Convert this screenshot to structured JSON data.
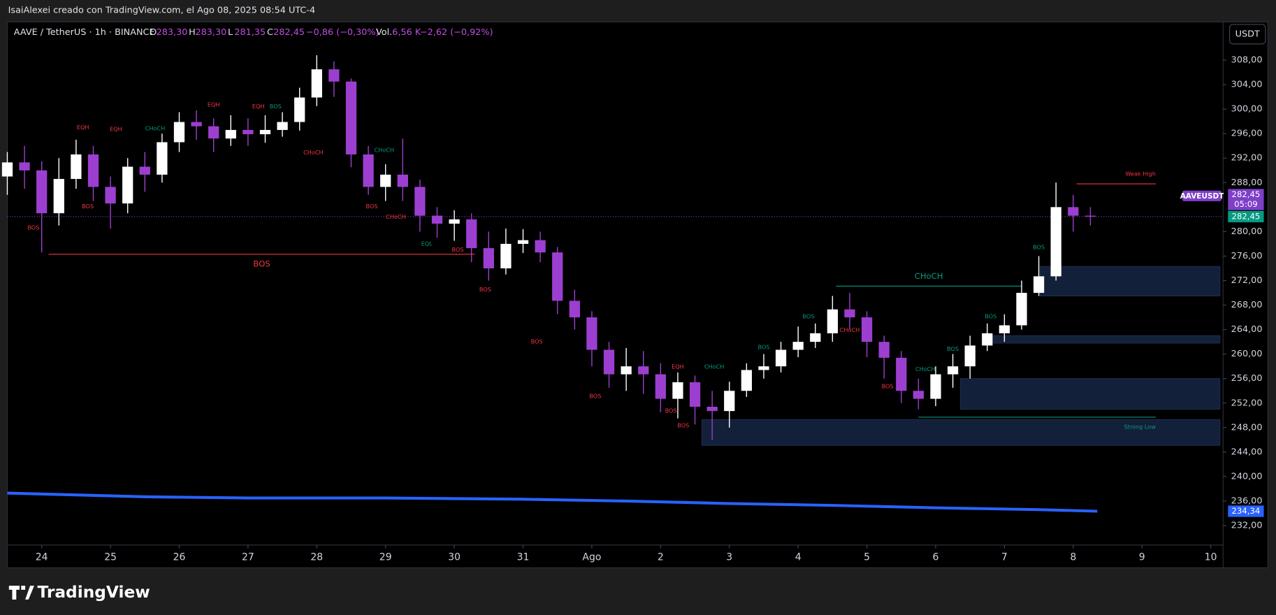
{
  "header": {
    "credit": "IsaiAlexei creado con TradingView.com, el Ago 08, 2025 08:54 UTC-4",
    "symbol": "AAVE / TetherUS · 1h · BINANCE",
    "ohlc": [
      {
        "key": "O",
        "value": "283,30"
      },
      {
        "key": "H",
        "value": "283,30"
      },
      {
        "key": "L",
        "value": "281,35"
      },
      {
        "key": "C",
        "value": "282,45"
      }
    ],
    "change": "−0,86 (−0,30%)",
    "vol_key": "Vol.",
    "vol": "6,56 K",
    "vol_change": "−2,62 (−0,92%)",
    "currency": "USDT"
  },
  "chart_data": {
    "type": "candlestick",
    "up_color": "#ffffff",
    "down_color": "#9c3fd0",
    "x": [
      -0.5,
      -0.25,
      0,
      0.25,
      0.5,
      0.75,
      1,
      1.25,
      1.5,
      1.75,
      2,
      2.25,
      2.5,
      2.75,
      3,
      3.25,
      3.5,
      3.75,
      4,
      4.25,
      4.5,
      4.75,
      5,
      5.25,
      5.5,
      5.75,
      6,
      6.25,
      6.5,
      6.75,
      7,
      7.25,
      7.5,
      7.75,
      8,
      8.25,
      8.5,
      8.75,
      9,
      9.25,
      9.5,
      9.75,
      10,
      10.25,
      10.5,
      10.75,
      11,
      11.25,
      11.5,
      11.75,
      12,
      12.25,
      12.5,
      12.75,
      13,
      13.25,
      13.5,
      13.75,
      14,
      14.25,
      14.5,
      14.75,
      15,
      15.25
    ],
    "open": [
      289,
      291.3,
      290,
      283,
      288.6,
      292.6,
      287.3,
      284.6,
      290.6,
      289.3,
      294.6,
      297.9,
      297.2,
      295.2,
      296.6,
      295.9,
      296.6,
      297.9,
      301.9,
      306.5,
      304.5,
      292.6,
      287.3,
      289.3,
      287.3,
      282.6,
      281.3,
      282,
      277.3,
      274,
      278,
      278.6,
      276.6,
      268.7,
      266,
      260.7,
      256.7,
      258,
      256.7,
      252.7,
      255.4,
      251.4,
      250.7,
      254,
      257.4,
      258,
      260.7,
      262,
      263.4,
      267.3,
      266,
      262,
      259.4,
      254,
      252.7,
      256.7,
      258,
      261.4,
      263.4,
      264.7,
      270,
      272.7,
      284,
      282.6
    ],
    "high": [
      293,
      294,
      291.5,
      292,
      295,
      294,
      289,
      292,
      293,
      296,
      299.5,
      299.8,
      298.5,
      299,
      298.5,
      299,
      299.5,
      303.5,
      308.8,
      307.8,
      305,
      294,
      291,
      295.2,
      288.5,
      284,
      283.5,
      283,
      280,
      280.5,
      280.4,
      280,
      277.5,
      270.5,
      267,
      262,
      261,
      260.5,
      258.5,
      257,
      256.5,
      254,
      255.5,
      258.5,
      260,
      262,
      264.5,
      265,
      269.5,
      270,
      267,
      263,
      260.5,
      256,
      258,
      260,
      263,
      265,
      266.5,
      272,
      276,
      288,
      286,
      284
    ],
    "low": [
      286,
      287,
      276.6,
      281,
      287,
      285,
      280.5,
      283,
      286.5,
      288,
      293,
      295,
      293,
      294,
      294,
      294.5,
      295.5,
      296.5,
      300.5,
      302,
      290.5,
      286,
      285,
      285,
      280,
      279,
      278.5,
      275,
      272,
      273,
      276.5,
      275,
      266.5,
      264,
      258,
      254.5,
      254,
      253.5,
      250.5,
      249.5,
      248.5,
      246,
      248,
      253,
      256,
      257,
      259.5,
      261,
      262,
      264,
      259.5,
      256,
      252,
      251,
      251.5,
      254.5,
      256,
      260.5,
      262,
      264,
      269.5,
      272,
      280,
      281
    ],
    "close": [
      291.3,
      290,
      283,
      288.6,
      292.6,
      287.3,
      284.6,
      290.6,
      289.3,
      294.6,
      297.9,
      297.2,
      295.2,
      296.6,
      295.9,
      296.6,
      297.9,
      301.9,
      306.5,
      304.5,
      292.6,
      287.3,
      289.3,
      287.3,
      282.6,
      281.3,
      282,
      277.3,
      274,
      278,
      278.6,
      276.6,
      268.7,
      266,
      260.7,
      256.7,
      258,
      256.7,
      252.7,
      255.4,
      251.4,
      250.7,
      254,
      257.4,
      258,
      260.7,
      262,
      263.4,
      267.3,
      266,
      262,
      259.4,
      254,
      252.7,
      256.7,
      258,
      261.4,
      263.4,
      264.7,
      270,
      272.7,
      284,
      282.6,
      282.45
    ],
    "xlim": [
      -0.5,
      17.18
    ],
    "ylim": [
      225.1,
      314.1
    ],
    "xticks": [
      {
        "value": 0,
        "label": "24"
      },
      {
        "value": 1,
        "label": "25"
      },
      {
        "value": 2,
        "label": "26"
      },
      {
        "value": 3,
        "label": "27"
      },
      {
        "value": 4,
        "label": "28"
      },
      {
        "value": 5,
        "label": "29"
      },
      {
        "value": 6,
        "label": "30"
      },
      {
        "value": 7,
        "label": "31"
      },
      {
        "value": 8,
        "label": "Ago"
      },
      {
        "value": 9,
        "label": "2"
      },
      {
        "value": 10,
        "label": "3"
      },
      {
        "value": 11,
        "label": "4"
      },
      {
        "value": 12,
        "label": "5"
      },
      {
        "value": 13,
        "label": "6"
      },
      {
        "value": 14,
        "label": "7"
      },
      {
        "value": 15,
        "label": "8"
      },
      {
        "value": 16,
        "label": "9"
      },
      {
        "value": 17,
        "label": "10"
      }
    ],
    "yticks": [
      {
        "value": 232,
        "label": "232,00"
      },
      {
        "value": 236,
        "label": "236,00"
      },
      {
        "value": 240,
        "label": "240,00"
      },
      {
        "value": 244,
        "label": "244,00"
      },
      {
        "value": 248,
        "label": "248,00"
      },
      {
        "value": 252,
        "label": "252,00"
      },
      {
        "value": 256,
        "label": "256,00"
      },
      {
        "value": 260,
        "label": "260,00"
      },
      {
        "value": 264,
        "label": "264,00"
      },
      {
        "value": 268,
        "label": "268,00"
      },
      {
        "value": 272,
        "label": "272,00"
      },
      {
        "value": 276,
        "label": "276,00"
      },
      {
        "value": 280,
        "label": "280,00"
      },
      {
        "value": 288,
        "label": "288,00"
      },
      {
        "value": 292,
        "label": "292,00"
      },
      {
        "value": 296,
        "label": "296,00"
      },
      {
        "value": 300,
        "label": "300,00"
      },
      {
        "value": 304,
        "label": "304,00"
      },
      {
        "value": 308,
        "label": "308,00"
      }
    ],
    "ma": {
      "color": "#2962ff",
      "x": [
        -0.5,
        0.5,
        1.5,
        3,
        5,
        7,
        8.5,
        10,
        11.5,
        13,
        14.5,
        15.35
      ],
      "values": [
        237.3,
        237,
        236.7,
        236.5,
        236.5,
        236.3,
        236,
        235.6,
        235.3,
        234.9,
        234.6,
        234.34
      ],
      "value_label": "234,34"
    },
    "last_price": {
      "value": 282.45,
      "label": "282,45",
      "symbol": "AAVEUSDT",
      "countdown": "05:09",
      "color": "#7e3fc9",
      "tag_color": "#089981"
    },
    "zones": [
      {
        "x0": 14.52,
        "top": 274.3,
        "bottom": 269.5
      },
      {
        "x0": 13.68,
        "top": 263,
        "bottom": 261.8
      },
      {
        "x0": 13.36,
        "top": 256,
        "bottom": 251
      },
      {
        "x0": 9.6,
        "top": 249.3,
        "bottom": 245.1
      }
    ],
    "zone_color": "#132039",
    "levels": [
      {
        "text": "BOS",
        "price": 276.3,
        "x0": 0.1,
        "x1": 6.3,
        "color": "#f23645",
        "label_side": "below",
        "label_at": "middle"
      },
      {
        "text": "CHoCH",
        "price": 271.1,
        "x0": 11.55,
        "x1": 14.25,
        "color": "#089981",
        "label_side": "above",
        "label_at": "middle"
      },
      {
        "text": "Weak High",
        "price": 287.8,
        "x0": 15.05,
        "x1": 16.2,
        "color": "#f23645",
        "label_side": "above",
        "label_at": "end"
      },
      {
        "text": "Strong Low",
        "price": 249.7,
        "x0": 12.75,
        "x1": 16.2,
        "color": "#089981",
        "label_side": "below",
        "label_at": "end"
      }
    ],
    "annotations": [
      {
        "text": "EQH",
        "x": 0.6,
        "price": 297,
        "color": "#f23645"
      },
      {
        "text": "EQH",
        "x": 1.08,
        "price": 296.7,
        "color": "#f23645"
      },
      {
        "text": "CHoCH",
        "x": 1.65,
        "price": 296.8,
        "color": "#089981"
      },
      {
        "text": "EQH",
        "x": 2.5,
        "price": 300.7,
        "color": "#f23645"
      },
      {
        "text": "EQH",
        "x": 3.15,
        "price": 300.4,
        "color": "#f23645"
      },
      {
        "text": "BOS",
        "x": 3.4,
        "price": 300.4,
        "color": "#089981"
      },
      {
        "text": "CHoCH",
        "x": 3.95,
        "price": 292.9,
        "color": "#f23645"
      },
      {
        "text": "CHoCH",
        "x": 4.98,
        "price": 293.3,
        "color": "#089981"
      },
      {
        "text": "BOS",
        "x": 0.67,
        "price": 284.1,
        "color": "#f23645"
      },
      {
        "text": "BOS",
        "x": -0.12,
        "price": 280.6,
        "color": "#f23645"
      },
      {
        "text": "BOS",
        "x": 4.8,
        "price": 284.1,
        "color": "#f23645"
      },
      {
        "text": "CHoCH",
        "x": 5.15,
        "price": 282.4,
        "color": "#f23645"
      },
      {
        "text": "EQL",
        "x": 5.6,
        "price": 278,
        "color": "#089981"
      },
      {
        "text": "BOS",
        "x": 6.05,
        "price": 277,
        "color": "#f23645"
      },
      {
        "text": "BOS",
        "x": 6.45,
        "price": 270.5,
        "color": "#f23645"
      },
      {
        "text": "BOS",
        "x": 7.2,
        "price": 262,
        "color": "#f23645"
      },
      {
        "text": "BOS",
        "x": 8.05,
        "price": 253.1,
        "color": "#f23645"
      },
      {
        "text": "EQH",
        "x": 9.25,
        "price": 257.9,
        "color": "#f23645"
      },
      {
        "text": "CHoCH",
        "x": 9.78,
        "price": 257.9,
        "color": "#089981"
      },
      {
        "text": "BOS",
        "x": 9.15,
        "price": 250.7,
        "color": "#f23645"
      },
      {
        "text": "BOS",
        "x": 9.33,
        "price": 248.3,
        "color": "#f23645"
      },
      {
        "text": "BOS",
        "x": 10.5,
        "price": 261.1,
        "color": "#089981"
      },
      {
        "text": "BOS",
        "x": 11.15,
        "price": 266.1,
        "color": "#089981"
      },
      {
        "text": "CHoCH",
        "x": 11.75,
        "price": 263.9,
        "color": "#f23645"
      },
      {
        "text": "BOS",
        "x": 12.3,
        "price": 254.7,
        "color": "#f23645"
      },
      {
        "text": "CHoCH",
        "x": 12.85,
        "price": 257.5,
        "color": "#089981"
      },
      {
        "text": "BOS",
        "x": 13.25,
        "price": 260.8,
        "color": "#089981"
      },
      {
        "text": "BOS",
        "x": 13.8,
        "price": 266.1,
        "color": "#089981"
      },
      {
        "text": "BOS",
        "x": 14.5,
        "price": 277.4,
        "color": "#089981"
      }
    ]
  },
  "footer": {
    "brand": "TradingView"
  }
}
